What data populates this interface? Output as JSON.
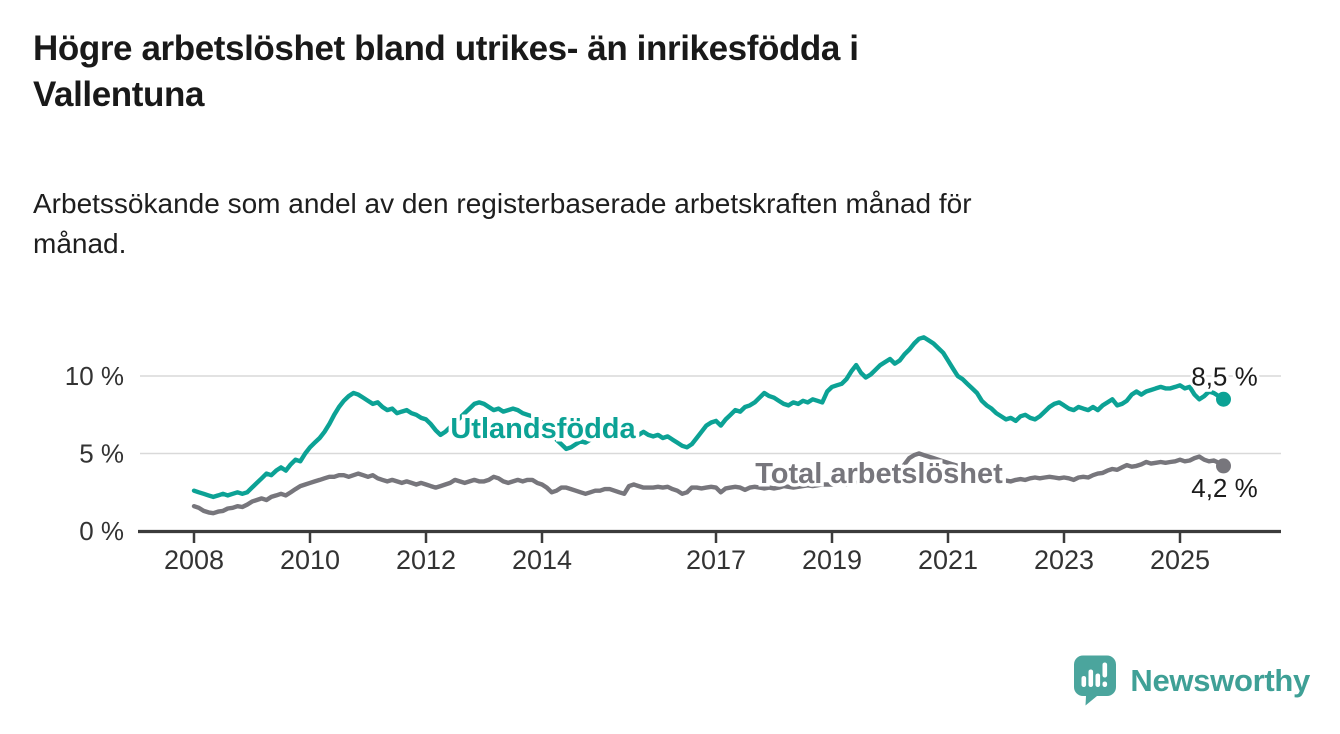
{
  "header": {
    "title_lines": [
      "Högre arbetslöshet bland utrikes- än inrikesfödda i",
      "Vallentuna"
    ],
    "subtitle_lines": [
      "Arbetssökande som andel av den registerbaserade arbetskraften månad för",
      "månad."
    ]
  },
  "branding": {
    "name": "Newsworthy",
    "icon": "newsworthy-speech-bubble-chart-icon",
    "icon_color": "#4BA59D",
    "text_color": "#3FA096"
  },
  "chart_data": {
    "type": "line",
    "unit": "%",
    "frequency": "monthly",
    "x_start": "2008-01",
    "x_end": "2025-10",
    "x_tick_labels": [
      "2008",
      "2010",
      "2012",
      "2014",
      "2017",
      "2019",
      "2021",
      "2023",
      "2025"
    ],
    "y_tick_labels": [
      {
        "value": 0,
        "label": "0 %"
      },
      {
        "value": 5,
        "label": "5 %"
      },
      {
        "value": 10,
        "label": "10 %"
      }
    ],
    "ylim": [
      0,
      12.8
    ],
    "grid": "horizontal",
    "legend": "inline-labels",
    "axis_color": "#3b3b3b",
    "grid_color": "#d9d9d9",
    "tick_text_color": "#333333",
    "annotation_text_color": "#1c1c1c",
    "series": [
      {
        "name": "Utlandsfödda",
        "color": "#0CA295",
        "end_label": "8,5 %",
        "end_label_position": "above",
        "last_value": 8.5,
        "values": [
          2.6,
          2.5,
          2.4,
          2.3,
          2.2,
          2.3,
          2.4,
          2.3,
          2.4,
          2.5,
          2.4,
          2.5,
          2.8,
          3.1,
          3.4,
          3.7,
          3.6,
          3.9,
          4.1,
          3.9,
          4.3,
          4.6,
          4.5,
          5.0,
          5.4,
          5.7,
          6.0,
          6.4,
          6.9,
          7.5,
          8.0,
          8.4,
          8.7,
          8.9,
          8.8,
          8.6,
          8.4,
          8.2,
          8.3,
          8.0,
          7.8,
          7.9,
          7.6,
          7.7,
          7.8,
          7.6,
          7.5,
          7.3,
          7.2,
          6.9,
          6.5,
          6.2,
          6.4,
          6.7,
          7.0,
          7.3,
          7.6,
          7.9,
          8.2,
          8.3,
          8.2,
          8.0,
          7.8,
          7.9,
          7.7,
          7.8,
          7.9,
          7.8,
          7.6,
          7.5,
          7.4,
          7.2,
          7.0,
          6.7,
          6.3,
          5.9,
          5.6,
          5.3,
          5.4,
          5.6,
          5.8,
          5.7,
          5.9,
          6.0,
          6.1,
          6.0,
          6.2,
          6.1,
          6.3,
          6.2,
          6.1,
          6.3,
          6.2,
          6.4,
          6.2,
          6.1,
          6.2,
          6.0,
          6.1,
          5.9,
          5.7,
          5.5,
          5.4,
          5.6,
          6.0,
          6.4,
          6.8,
          7.0,
          7.1,
          6.8,
          7.2,
          7.5,
          7.8,
          7.7,
          8.0,
          8.1,
          8.3,
          8.6,
          8.9,
          8.7,
          8.6,
          8.4,
          8.2,
          8.1,
          8.3,
          8.2,
          8.4,
          8.3,
          8.5,
          8.4,
          8.3,
          9.0,
          9.3,
          9.4,
          9.5,
          9.8,
          10.3,
          10.7,
          10.2,
          9.9,
          10.1,
          10.4,
          10.7,
          10.9,
          11.1,
          10.8,
          11.0,
          11.4,
          11.7,
          12.1,
          12.4,
          12.5,
          12.3,
          12.1,
          11.8,
          11.5,
          11.0,
          10.5,
          10.0,
          9.8,
          9.5,
          9.2,
          8.9,
          8.4,
          8.1,
          7.9,
          7.6,
          7.4,
          7.2,
          7.3,
          7.1,
          7.4,
          7.5,
          7.3,
          7.2,
          7.4,
          7.7,
          8.0,
          8.2,
          8.3,
          8.1,
          7.9,
          7.8,
          8.0,
          7.9,
          7.8,
          8.0,
          7.8,
          8.1,
          8.3,
          8.5,
          8.1,
          8.2,
          8.4,
          8.8,
          9.0,
          8.8,
          9.0,
          9.1,
          9.2,
          9.3,
          9.2,
          9.2,
          9.3,
          9.4,
          9.2,
          9.3,
          8.8,
          8.5,
          8.7,
          9.0,
          8.9,
          8.7,
          8.5
        ]
      },
      {
        "name": "Total arbetslöshet",
        "color": "#77767C",
        "end_label": "4,2 %",
        "end_label_position": "below",
        "last_value": 4.2,
        "values": [
          1.6,
          1.5,
          1.3,
          1.2,
          1.15,
          1.25,
          1.3,
          1.45,
          1.5,
          1.6,
          1.55,
          1.7,
          1.9,
          2.0,
          2.1,
          2.0,
          2.2,
          2.3,
          2.4,
          2.3,
          2.5,
          2.7,
          2.9,
          3.0,
          3.1,
          3.2,
          3.3,
          3.4,
          3.5,
          3.5,
          3.6,
          3.6,
          3.5,
          3.6,
          3.7,
          3.6,
          3.5,
          3.6,
          3.4,
          3.3,
          3.2,
          3.3,
          3.2,
          3.1,
          3.2,
          3.1,
          3.0,
          3.1,
          3.0,
          2.9,
          2.8,
          2.9,
          3.0,
          3.1,
          3.3,
          3.2,
          3.1,
          3.2,
          3.3,
          3.2,
          3.2,
          3.3,
          3.5,
          3.4,
          3.2,
          3.1,
          3.2,
          3.3,
          3.2,
          3.3,
          3.3,
          3.1,
          3.0,
          2.8,
          2.5,
          2.6,
          2.8,
          2.8,
          2.7,
          2.6,
          2.5,
          2.4,
          2.5,
          2.6,
          2.6,
          2.7,
          2.7,
          2.6,
          2.5,
          2.4,
          2.9,
          3.0,
          2.9,
          2.8,
          2.8,
          2.8,
          2.85,
          2.8,
          2.85,
          2.7,
          2.6,
          2.4,
          2.5,
          2.8,
          2.8,
          2.75,
          2.8,
          2.85,
          2.8,
          2.5,
          2.75,
          2.8,
          2.85,
          2.8,
          2.65,
          2.8,
          2.85,
          2.8,
          2.75,
          2.8,
          2.75,
          2.8,
          2.9,
          2.85,
          2.8,
          2.85,
          2.9,
          2.95,
          2.9,
          2.95,
          3.0,
          3.0,
          3.0,
          3.05,
          3.1,
          3.0,
          3.05,
          3.1,
          3.15,
          3.1,
          3.2,
          3.25,
          3.3,
          3.4,
          3.5,
          3.6,
          3.8,
          4.3,
          4.7,
          4.9,
          5.0,
          4.9,
          4.8,
          4.7,
          4.6,
          4.5,
          4.4,
          4.3,
          4.2,
          4.0,
          3.9,
          3.75,
          3.6,
          3.5,
          3.45,
          3.4,
          3.35,
          3.3,
          3.25,
          3.2,
          3.3,
          3.35,
          3.3,
          3.4,
          3.45,
          3.4,
          3.45,
          3.5,
          3.45,
          3.4,
          3.45,
          3.4,
          3.3,
          3.45,
          3.5,
          3.45,
          3.6,
          3.7,
          3.75,
          3.9,
          4.0,
          3.95,
          4.1,
          4.25,
          4.15,
          4.2,
          4.3,
          4.45,
          4.35,
          4.4,
          4.45,
          4.4,
          4.45,
          4.5,
          4.6,
          4.5,
          4.55,
          4.7,
          4.8,
          4.6,
          4.5,
          4.55,
          4.4,
          4.2
        ]
      }
    ]
  }
}
